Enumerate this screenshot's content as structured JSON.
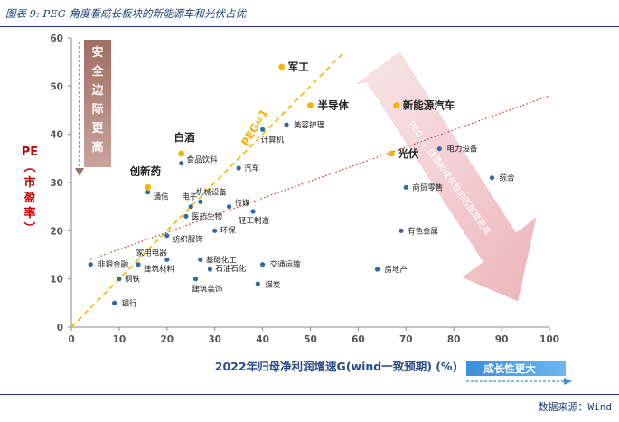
{
  "caption": "图表 9: PEG 角度看成长板块的新能源车和光伏占优",
  "source": "数据来源：Wind",
  "colors": {
    "point": "#2e6aa3",
    "highlight": "#f4b400",
    "peg_line": "#f4b400",
    "trend": "#c0392b",
    "accent_red": "#c00000",
    "axis_title": "#2b4a8a"
  },
  "chart_data": {
    "type": "scatter",
    "xlabel": "2022年归母净利润增速G(wind一致预期) (%)",
    "ylabel": "PE（市盈率）",
    "xlim": [
      0,
      100
    ],
    "ylim": [
      0,
      60
    ],
    "xticks": [
      0,
      10,
      20,
      30,
      40,
      50,
      60,
      70,
      80,
      90,
      100
    ],
    "yticks": [
      0,
      10,
      20,
      30,
      40,
      50,
      60
    ],
    "grid": false,
    "points": [
      {
        "label": "银行",
        "x": 9,
        "y": 5
      },
      {
        "label": "钢铁",
        "x": 10,
        "y": 10
      },
      {
        "label": "非银金融",
        "x": 4,
        "y": 13
      },
      {
        "label": "建筑材料",
        "x": 14,
        "y": 13
      },
      {
        "label": "家用电器",
        "x": 20,
        "y": 14
      },
      {
        "label": "通信",
        "x": 16,
        "y": 28
      },
      {
        "label": "电子",
        "x": 25,
        "y": 25
      },
      {
        "label": "医药生物",
        "x": 24,
        "y": 23
      },
      {
        "label": "纺织服饰",
        "x": 20,
        "y": 19
      },
      {
        "label": "食品饮料",
        "x": 23,
        "y": 34
      },
      {
        "label": "机械设备",
        "x": 27,
        "y": 26
      },
      {
        "label": "传媒",
        "x": 33,
        "y": 25
      },
      {
        "label": "环保",
        "x": 30,
        "y": 20
      },
      {
        "label": "轻工制造",
        "x": 38,
        "y": 24
      },
      {
        "label": "汽车",
        "x": 35,
        "y": 33
      },
      {
        "label": "计算机",
        "x": 40,
        "y": 41
      },
      {
        "label": "美容护理",
        "x": 45,
        "y": 42
      },
      {
        "label": "基础化工",
        "x": 27,
        "y": 14
      },
      {
        "label": "石油石化",
        "x": 29,
        "y": 12
      },
      {
        "label": "建筑装饰",
        "x": 26,
        "y": 10
      },
      {
        "label": "交通运输",
        "x": 40,
        "y": 13
      },
      {
        "label": "煤炭",
        "x": 39,
        "y": 9
      },
      {
        "label": "房地产",
        "x": 64,
        "y": 12
      },
      {
        "label": "有色金属",
        "x": 69,
        "y": 20
      },
      {
        "label": "商贸零售",
        "x": 70,
        "y": 29
      },
      {
        "label": "电力设备",
        "x": 77,
        "y": 37
      },
      {
        "label": "综合",
        "x": 88,
        "y": 31
      }
    ],
    "highlights": [
      {
        "label": "军工",
        "x": 44,
        "y": 54
      },
      {
        "label": "半导体",
        "x": 50,
        "y": 46
      },
      {
        "label": "新能源汽车",
        "x": 68,
        "y": 46
      },
      {
        "label": "光伏",
        "x": 67,
        "y": 36
      },
      {
        "label": "白酒",
        "x": 23,
        "y": 36
      },
      {
        "label": "创新药",
        "x": 16,
        "y": 29
      }
    ],
    "peg_line": {
      "label": "PEG=1",
      "slope": 1
    },
    "trend_line": {
      "x": [
        4,
        100
      ],
      "y": [
        14,
        48
      ]
    },
    "annotations": {
      "safety_margin": "安全边际更高",
      "peg_arrow": "PEG↓，估值和成长性的匹配度更高",
      "growth_arrow": "成长性更大"
    }
  }
}
